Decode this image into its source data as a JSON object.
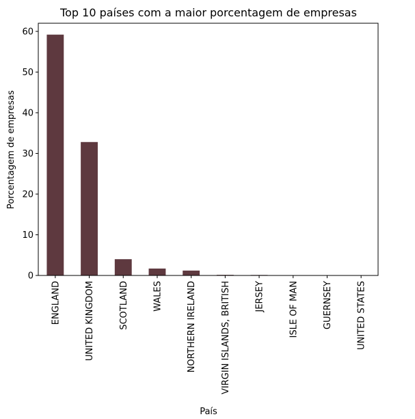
{
  "chart_data": {
    "type": "bar",
    "title": "Top 10 países com a maior porcentagem de empresas",
    "xlabel": "País",
    "ylabel": "Porcentagem de empresas",
    "categories": [
      "ENGLAND",
      "UNITED KINGDOM",
      "SCOTLAND",
      "WALES",
      "NORTHERN IRELAND",
      "VIRGIN ISLANDS, BRITISH",
      "JERSEY",
      "ISLE OF MAN",
      "GUERNSEY",
      "UNITED STATES"
    ],
    "values": [
      59.2,
      32.8,
      4.0,
      1.7,
      1.2,
      0.15,
      0.12,
      0.05,
      0.04,
      0.03
    ],
    "ylim": [
      0,
      62
    ],
    "yticks": [
      0,
      10,
      20,
      30,
      40,
      50,
      60
    ],
    "bar_color": "#5e393f",
    "grid": false,
    "legend": "none"
  }
}
